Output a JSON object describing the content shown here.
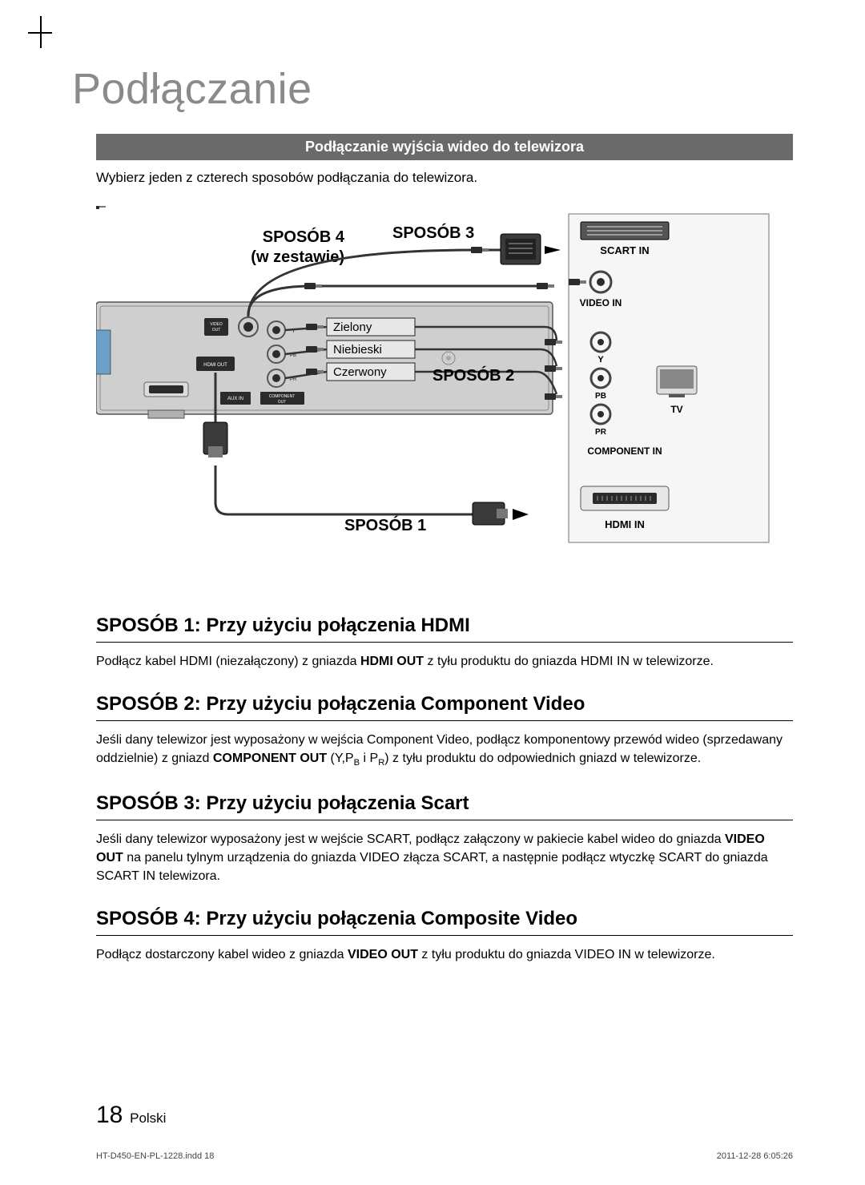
{
  "chapter_title": "Podłączanie",
  "section_bar": "Podłączanie wyjścia wideo do telewizora",
  "intro": "Wybierz jeden z czterech sposobów podłączania do telewizora.",
  "diagram": {
    "labels": {
      "method1": "SPOSÓB 1",
      "method2": "SPOSÓB 2",
      "method3": "SPOSÓB 3",
      "method4_line1": "SPOSÓB 4",
      "method4_line2": "(w zestawie)",
      "green": "Zielony",
      "blue": "Niebieski",
      "red": "Czerwony",
      "scart_in": "SCART IN",
      "video_in": "VIDEO IN",
      "y": "Y",
      "pb": "PB",
      "pr": "PR",
      "tv": "TV",
      "component_in": "COMPONENT IN",
      "hdmi_in": "HDMI IN",
      "video_out": "VIDEO\nOUT",
      "hdmi_out": "HDMI OUT",
      "component_out": "COMPONENT\nOUT",
      "aux_in": "AUX IN"
    },
    "colors": {
      "device_body": "#c9c9c9",
      "device_stroke": "#555555",
      "tv_panel": "#f2f2f2",
      "tv_border": "#888888",
      "label_box_fill": "#e8e8e8",
      "label_box_stroke": "#222222",
      "cable": "#333333",
      "port_dark": "#2b2b2b",
      "port_ring": "#888888"
    }
  },
  "methods": [
    {
      "heading": "SPOSÓB 1: Przy użyciu połączenia HDMI",
      "text_html": "Podłącz kabel HDMI (niezałączony) z gniazda <b>HDMI OUT</b> z tyłu produktu do gniazda HDMI IN w telewizorze."
    },
    {
      "heading": "SPOSÓB 2: Przy użyciu połączenia Component Video",
      "text_html": "Jeśli dany telewizor jest wyposażony w wejścia Component Video, podłącz komponentowy przewód wideo (sprzedawany oddzielnie) z gniazd <b>COMPONENT OUT</b> (Y,P<sub>B</sub> i P<sub>R</sub>) z tyłu produktu do odpowiednich gniazd w telewizorze."
    },
    {
      "heading": "SPOSÓB 3: Przy użyciu połączenia Scart",
      "text_html": "Jeśli dany telewizor wyposażony jest w wejście SCART, podłącz załączony w pakiecie kabel wideo do gniazda <b>VIDEO OUT</b> na panelu tylnym urządzenia do gniazda VIDEO złącza SCART, a następnie podłącz wtyczkę SCART do gniazda SCART IN telewizora."
    },
    {
      "heading": "SPOSÓB 4: Przy użyciu połączenia Composite Video",
      "text_html": "Podłącz dostarczony kabel wideo z gniazda <b>VIDEO OUT</b> z tyłu produktu do gniazda VIDEO IN w telewizorze."
    }
  ],
  "footer": {
    "page": "18",
    "lang": "Polski"
  },
  "meta": {
    "file": "HT-D450-EN-PL-1228.indd   18",
    "timestamp": "2011-12-28   6:05:26"
  }
}
